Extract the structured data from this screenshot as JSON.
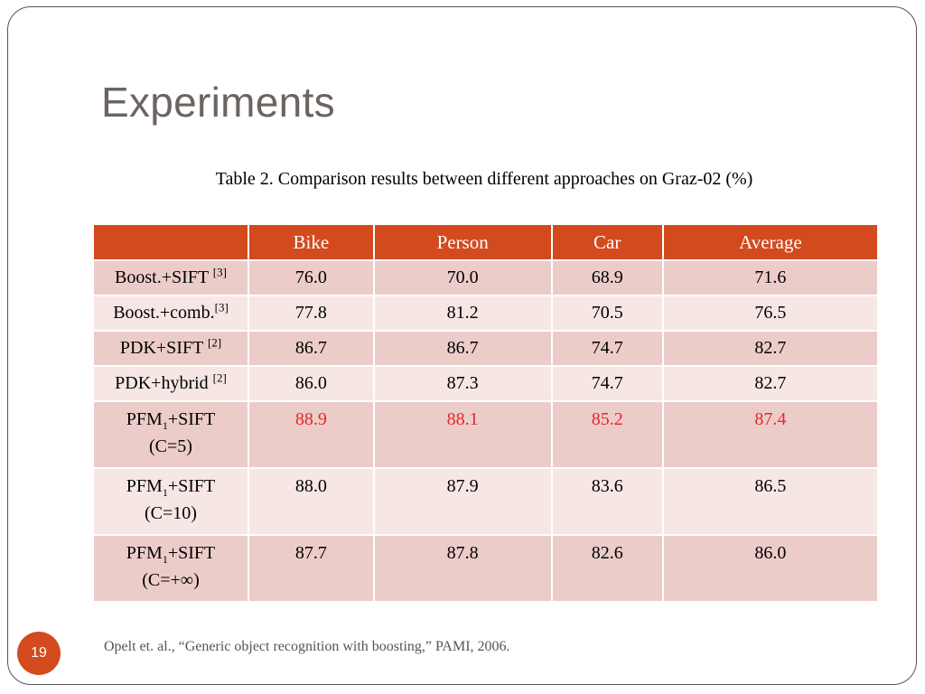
{
  "slide": {
    "title": "Experiments",
    "page_number": "19",
    "footnote": "Opelt et. al., “Generic object recognition with boosting,” PAMI, 2006."
  },
  "table": {
    "caption": "Table 2. Comparison results between different approaches on Graz-02 (%)",
    "header": [
      "",
      "Bike",
      "Person",
      "Car",
      "Average"
    ],
    "rows": [
      {
        "label": "Boost.+SIFT ",
        "ref": "[3]",
        "values": [
          "76.0",
          "70.0",
          "68.9",
          "71.6"
        ]
      },
      {
        "label": "Boost.+comb.",
        "ref": "[3]",
        "values": [
          "77.8",
          "81.2",
          "70.5",
          "76.5"
        ]
      },
      {
        "label": "PDK+SIFT ",
        "ref": "[2]",
        "values": [
          "86.7",
          "86.7",
          "74.7",
          "82.7"
        ]
      },
      {
        "label": "PDK+hybrid ",
        "ref": "[2]",
        "values": [
          "86.0",
          "87.3",
          "74.7",
          "82.7"
        ]
      },
      {
        "label_pre": "PFM",
        "label_sub": "1",
        "label_post": "+SIFT",
        "label_line2": "(C=5)",
        "values": [
          "88.9",
          "88.1",
          "85.2",
          "87.4"
        ],
        "highlight": true
      },
      {
        "label_pre": "PFM",
        "label_sub": "1",
        "label_post": "+SIFT",
        "label_line2": "(C=10)",
        "values": [
          "88.0",
          "87.9",
          "83.6",
          "86.5"
        ]
      },
      {
        "label_pre": "PFM",
        "label_sub": "1",
        "label_post": "+SIFT",
        "label_line2": "(C=+∞)",
        "values": [
          "87.7",
          "87.8",
          "82.6",
          "86.0"
        ]
      }
    ]
  },
  "colors": {
    "accent": "#d24a1d",
    "highlight_text": "#e8282a",
    "row_dark": "#ecccc9",
    "row_light": "#f6e7e5"
  }
}
